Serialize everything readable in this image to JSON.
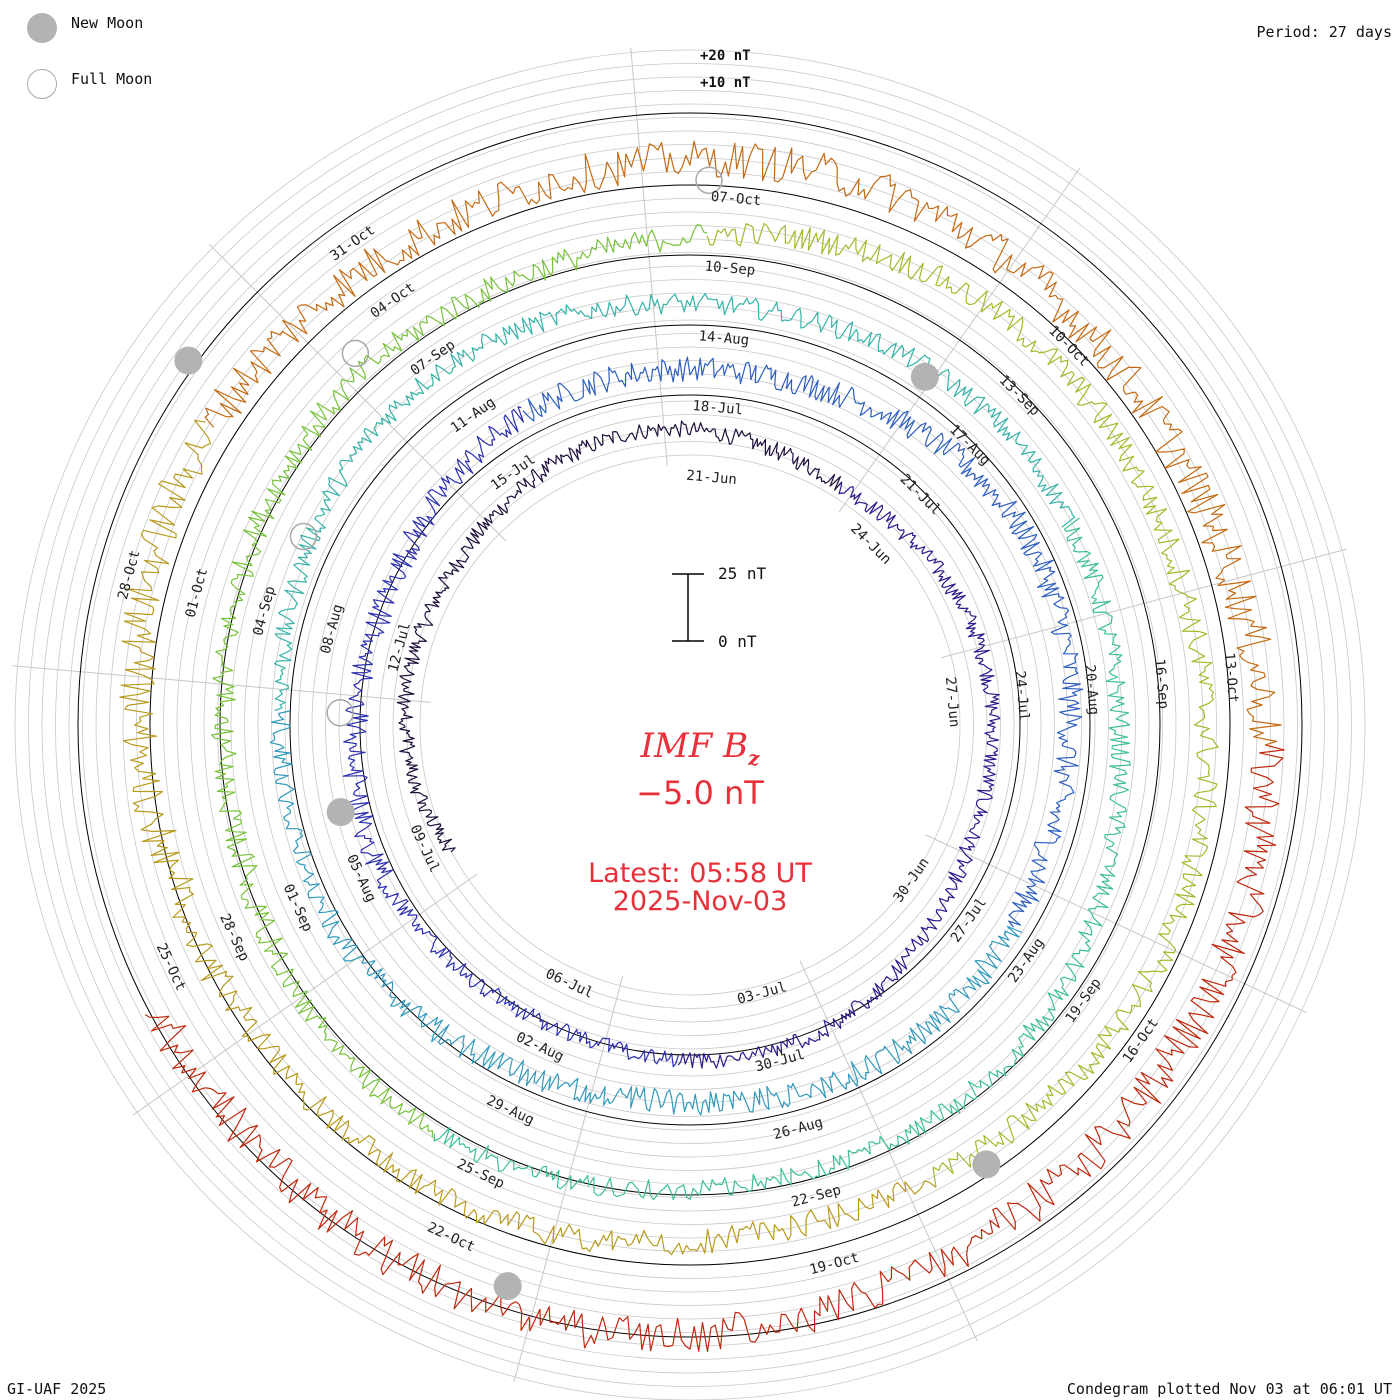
{
  "legend": {
    "new_moon": "New Moon",
    "full_moon": "Full Moon"
  },
  "period": "Period: 27 days",
  "scale_ring_labels": [
    "+20 nT",
    "+10 nT"
  ],
  "scale_bar": {
    "top_label": "25 nT",
    "bottom_label": "0 nT"
  },
  "center": {
    "title_main": "IMF B",
    "title_sub": "z",
    "value": "−5.0 nT",
    "latest_line1": "Latest: 05:58 UT",
    "latest_line2": "2025-Nov-03"
  },
  "footer_left": "GI-UAF 2025",
  "footer_right": "Condegram plotted Nov 03 at 06:01 UT",
  "colors": {
    "grid": "#c8c8c8",
    "baseline": "#000000",
    "accent_text": "#e8303a",
    "moon_new": "#b3b3b3",
    "moon_full": "#a8a8a8"
  },
  "chart_data": {
    "type": "line",
    "title": "IMF Bz",
    "units": "nT",
    "latest_value": -5.0,
    "period_days": 27,
    "rotations": [
      {
        "color": "#1e0f3a",
        "labels": [
          "21-Jun",
          "24-Jun",
          "27-Jun",
          "30-Jun",
          "03-Jul",
          "06-Jul",
          "09-Jul",
          "12-Jul",
          "15-Jul"
        ]
      },
      {
        "color": "#2c2fb0",
        "labels": [
          "18-Jul",
          "21-Jul",
          "24-Jul",
          "27-Jul",
          "30-Jul",
          "02-Aug",
          "05-Aug",
          "08-Aug",
          "11-Aug"
        ]
      },
      {
        "color": "#3199bc",
        "labels": [
          "14-Aug",
          "17-Aug",
          "20-Aug",
          "23-Aug",
          "26-Aug",
          "29-Aug",
          "01-Sep",
          "04-Sep",
          "07-Sep"
        ]
      },
      {
        "color": "#3cc090",
        "labels": [
          "10-Sep",
          "13-Sep",
          "16-Sep",
          "19-Sep",
          "22-Sep",
          "25-Sep",
          "28-Sep",
          "01-Oct",
          "04-Oct"
        ]
      },
      {
        "color": "#a6b82a",
        "labels": [
          "07-Oct",
          "10-Oct",
          "13-Oct",
          "16-Oct",
          "19-Oct",
          "22-Oct",
          "25-Oct",
          "28-Oct",
          "31-Oct"
        ]
      }
    ],
    "segment_colors": [
      "#1e0f3a",
      "#2a1a8c",
      "#2c2fb0",
      "#2e5fc0",
      "#3199bc",
      "#35b3a8",
      "#3cc090",
      "#77c23a",
      "#a6b82a",
      "#b89a1e",
      "#c46a12",
      "#c0280e"
    ],
    "new_moons_day_angles_deg": [
      34,
      146,
      198,
      256,
      306
    ],
    "full_moons_day_angles_deg": [
      272,
      296,
      318,
      2
    ],
    "noise_amplitude_nT": [
      4,
      6,
      5,
      6,
      9
    ]
  }
}
